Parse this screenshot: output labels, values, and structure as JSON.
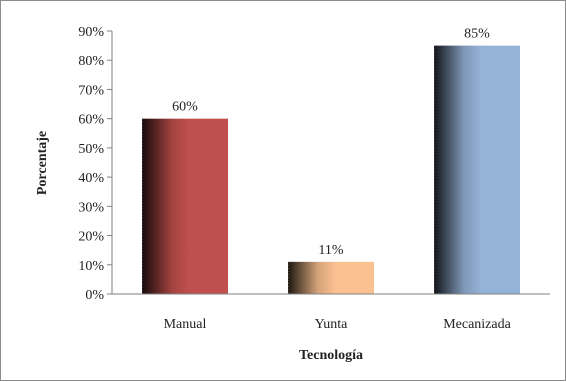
{
  "chart_data": {
    "type": "bar",
    "title": "",
    "xlabel": "Tecnología",
    "ylabel": "Porcentaje",
    "categories": [
      "Manual",
      "Yunta",
      "Mecanizada"
    ],
    "values": [
      60,
      11,
      85
    ],
    "value_labels": [
      "60%",
      "11%",
      "85%"
    ],
    "ylim": [
      0,
      90
    ],
    "yticks": [
      0,
      10,
      20,
      30,
      40,
      50,
      60,
      70,
      80,
      90
    ],
    "ytick_labels": [
      "0%",
      "10%",
      "20%",
      "30%",
      "40%",
      "50%",
      "60%",
      "70%",
      "80%",
      "90%"
    ],
    "bar_colors": [
      "#c0504d",
      "#fac090",
      "#95b3d7"
    ],
    "grid": false,
    "legend": "none"
  }
}
